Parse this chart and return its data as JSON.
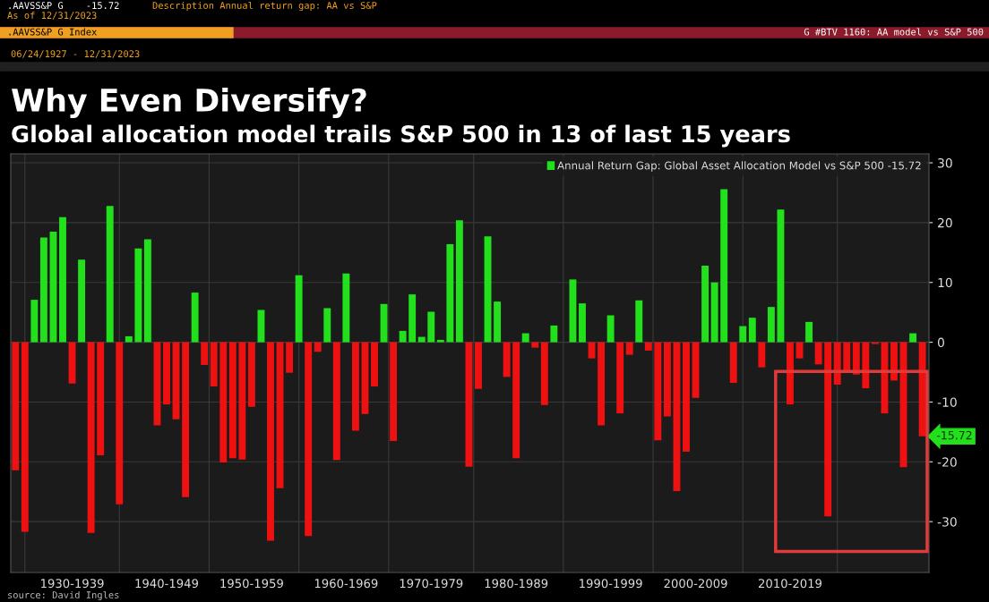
{
  "chart_data": {
    "type": "bar",
    "title": "Why Even Diversify?",
    "subtitle": "Global allocation model trails S&P 500 in 13 of last 15 years",
    "categories": [
      null,
      null,
      null,
      null,
      null,
      null,
      "1930-1939",
      null,
      null,
      null,
      null,
      null,
      null,
      null,
      null,
      null,
      "1940-1949",
      null,
      null,
      null,
      null,
      null,
      null,
      null,
      null,
      "1950-1959",
      null,
      null,
      null,
      null,
      null,
      null,
      null,
      null,
      null,
      "1960-1969",
      null,
      null,
      null,
      null,
      null,
      null,
      null,
      null,
      "1970-1979",
      null,
      null,
      null,
      null,
      null,
      null,
      null,
      null,
      "1980-1989",
      null,
      null,
      null,
      null,
      null,
      null,
      null,
      null,
      null,
      "1990-1999",
      null,
      null,
      null,
      null,
      null,
      null,
      null,
      null,
      "2000-2009",
      null,
      null,
      null,
      null,
      null,
      null,
      null,
      null,
      null,
      "2010-2019",
      null,
      null,
      null,
      null,
      null,
      null,
      null,
      null,
      null,
      null,
      null,
      null,
      null,
      null
    ],
    "series": [
      {
        "name": "Annual Return Gap: Global Asset Allocation Model vs S&P 500 -15.72",
        "color": "#22e01c",
        "values": [
          -21.4,
          -31.7,
          7.1,
          17.5,
          18.5,
          20.9,
          -6.9,
          13.8,
          -31.9,
          -18.9,
          22.8,
          -27.1,
          1.0,
          15.7,
          17.2,
          -13.9,
          -10.4,
          -12.9,
          -25.9,
          8.3,
          -3.8,
          -7.4,
          -20.1,
          -19.4,
          -19.6,
          -10.8,
          5.4,
          -33.2,
          -24.4,
          -5.1,
          11.2,
          -32.4,
          -1.6,
          5.7,
          -19.7,
          11.5,
          -14.8,
          -12.0,
          -7.4,
          6.4,
          -16.5,
          1.9,
          8.0,
          0.9,
          5.1,
          0.4,
          16.4,
          20.4,
          -20.8,
          -7.8,
          17.7,
          6.8,
          -5.8,
          -19.4,
          1.5,
          -0.9,
          -10.5,
          2.8,
          0.0,
          10.5,
          6.5,
          -2.7,
          -13.9,
          4.5,
          -11.9,
          -2.1,
          7.0,
          -1.4,
          -16.4,
          -12.4,
          -24.9,
          -18.3,
          -9.3,
          12.8,
          10.0,
          25.6,
          -6.8,
          2.7,
          4.1,
          -4.2,
          5.9,
          22.2,
          -10.4,
          -2.7,
          3.4,
          -3.7,
          -29.1,
          -7.1,
          -4.8,
          -5.4,
          -7.7,
          -0.3,
          -11.9,
          -6.4,
          -20.9,
          1.5,
          -15.72
        ],
        "colors": [
          "#ee1111",
          "#ee1111",
          "#22e01c",
          "#22e01c",
          "#22e01c",
          "#22e01c",
          "#ee1111",
          "#22e01c",
          "#ee1111",
          "#ee1111",
          "#22e01c",
          "#ee1111",
          "#22e01c",
          "#22e01c",
          "#22e01c",
          "#ee1111",
          "#ee1111",
          "#ee1111",
          "#ee1111",
          "#22e01c",
          "#ee1111",
          "#ee1111",
          "#ee1111",
          "#ee1111",
          "#ee1111",
          "#ee1111",
          "#22e01c",
          "#ee1111",
          "#ee1111",
          "#ee1111",
          "#22e01c",
          "#ee1111",
          "#ee1111",
          "#22e01c",
          "#ee1111",
          "#22e01c",
          "#ee1111",
          "#ee1111",
          "#ee1111",
          "#22e01c",
          "#ee1111",
          "#22e01c",
          "#22e01c",
          "#22e01c",
          "#22e01c",
          "#22e01c",
          "#22e01c",
          "#22e01c",
          "#ee1111",
          "#ee1111",
          "#22e01c",
          "#22e01c",
          "#ee1111",
          "#ee1111",
          "#22e01c",
          "#ee1111",
          "#ee1111",
          "#22e01c",
          "#22e01c",
          "#22e01c",
          "#22e01c",
          "#ee1111",
          "#ee1111",
          "#22e01c",
          "#ee1111",
          "#ee1111",
          "#22e01c",
          "#ee1111",
          "#ee1111",
          "#ee1111",
          "#ee1111",
          "#ee1111",
          "#ee1111",
          "#22e01c",
          "#22e01c",
          "#22e01c",
          "#ee1111",
          "#22e01c",
          "#22e01c",
          "#ee1111",
          "#22e01c",
          "#22e01c",
          "#ee1111",
          "#ee1111",
          "#22e01c",
          "#ee1111",
          "#ee1111",
          "#ee1111",
          "#ee1111",
          "#ee1111",
          "#ee1111",
          "#ee1111",
          "#ee1111",
          "#ee1111",
          "#ee1111",
          "#22e01c",
          "#ee1111"
        ]
      }
    ],
    "ylim": [
      -38.5,
      31.5
    ],
    "yticks": [
      -30,
      -20,
      -10,
      0,
      10,
      20,
      30
    ],
    "grid": true,
    "legend": "top right",
    "annotations": [
      ".AAVSS&P G    -15.72",
      "Description Annual return gap: AA vs S&P",
      "As of 12/31/2023",
      ".AAVSS&P G Index",
      "G #BTV 1160: AA model vs S&P 500",
      "06/24/1927 - 12/31/2023",
      "source: David Ingles",
      "-15.72"
    ]
  }
}
